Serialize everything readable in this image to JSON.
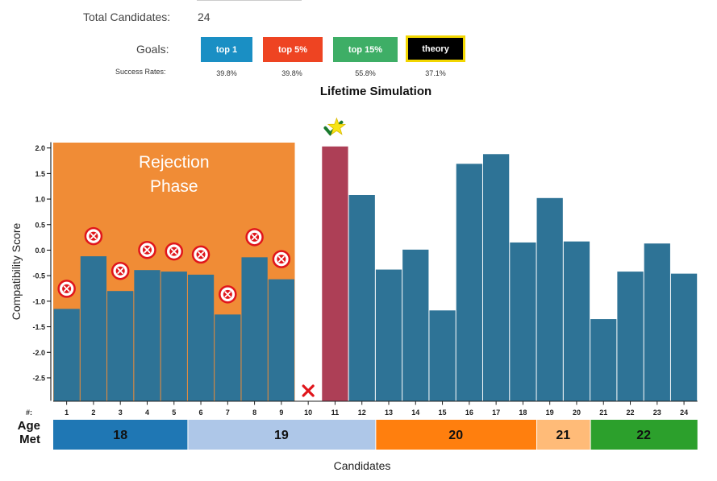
{
  "header": {
    "total_label": "Total Candidates:",
    "total_value": "24",
    "goals_label": "Goals:",
    "rates_label": "Success Rates:",
    "goals": [
      {
        "label": "top 1",
        "rate": "39.8%",
        "color": "#1a8fc4",
        "selected": false
      },
      {
        "label": "top 5%",
        "rate": "39.8%",
        "color": "#ee4422",
        "selected": false
      },
      {
        "label": "top 15%",
        "rate": "55.8%",
        "color": "#3eae66",
        "selected": false
      },
      {
        "label": "theory",
        "rate": "37.1%",
        "color": "#000000",
        "selected": true,
        "border": "#f2d600"
      }
    ]
  },
  "chart_data": {
    "type": "bar",
    "title": "Lifetime Simulation",
    "xlabel": "Candidates",
    "ylabel": "Compatibility Score",
    "ylim": [
      -2.95,
      2.05
    ],
    "yticks": [
      "2.0",
      "1.5",
      "1.0",
      "0.5",
      "0.0",
      "-0.5",
      "-1.0",
      "-1.5",
      "-2.0",
      "-2.5"
    ],
    "ytick_values": [
      2.0,
      1.5,
      1.0,
      0.5,
      0.0,
      -0.5,
      -1.0,
      -1.5,
      -2.0,
      -2.5
    ],
    "phase_label": "Rejection Phase",
    "phase_color": "#f08c36",
    "phase_end": 9,
    "selected_candidate": 11,
    "selected_color": "#ad3f56",
    "bar_color": "#2e7396",
    "categories": [
      "1",
      "2",
      "3",
      "4",
      "5",
      "6",
      "7",
      "8",
      "9",
      "10",
      "11",
      "12",
      "13",
      "14",
      "15",
      "16",
      "17",
      "18",
      "19",
      "20",
      "21",
      "22",
      "23",
      "24"
    ],
    "values": [
      -1.15,
      -0.12,
      -0.8,
      -0.39,
      -0.42,
      -0.48,
      -1.26,
      -0.14,
      -0.57,
      null,
      2.03,
      1.08,
      -0.38,
      0.01,
      -1.18,
      1.69,
      1.88,
      0.15,
      1.02,
      0.17,
      -1.35,
      -0.42,
      0.13,
      -0.46
    ],
    "rejected": [
      1,
      2,
      3,
      4,
      5,
      6,
      7,
      8,
      9
    ],
    "skipped": [
      10
    ],
    "index_label": "#:",
    "age_label": "Age Met",
    "age_groups": [
      {
        "age": "18",
        "start": 1,
        "end": 5,
        "color": "#1f77b4"
      },
      {
        "age": "19",
        "start": 6,
        "end": 12,
        "color": "#aec7e8"
      },
      {
        "age": "20",
        "start": 13,
        "end": 18,
        "color": "#ff7f0e"
      },
      {
        "age": "21",
        "start": 19,
        "end": 20,
        "color": "#ffbb78"
      },
      {
        "age": "22",
        "start": 21,
        "end": 24,
        "color": "#2ca02c"
      }
    ]
  }
}
